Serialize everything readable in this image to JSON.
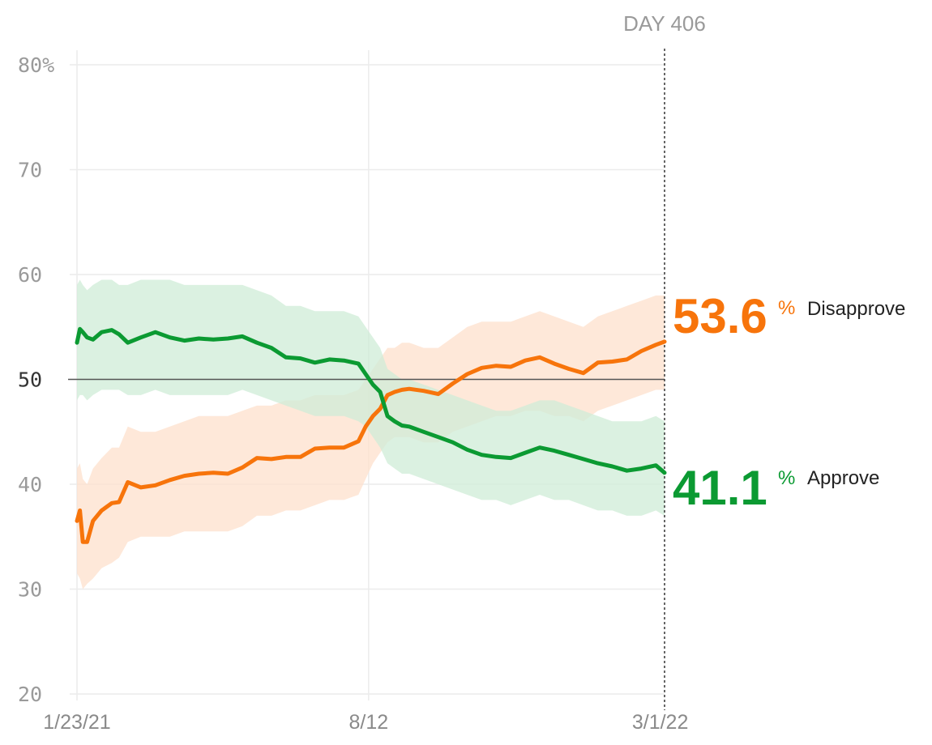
{
  "marker": {
    "label": "DAY 406"
  },
  "colors": {
    "approve": "#0b9a32",
    "disapprove": "#f7740b",
    "approve_band": "#cfecd7",
    "disapprove_band": "#fde0cc",
    "grid": "#ececec",
    "midline": "#555555"
  },
  "chart_data": {
    "type": "line",
    "ylim": [
      20,
      80
    ],
    "y_ticks": [
      "80%",
      "70",
      "60",
      "50",
      "40",
      "30",
      "20"
    ],
    "y_tick_values": [
      80,
      70,
      60,
      50,
      40,
      30,
      20
    ],
    "x_ticks": [
      "1/23/21",
      "8/12",
      "3/1/22"
    ],
    "x_tick_days": [
      1,
      202,
      403
    ],
    "x_domain_days": [
      1,
      406
    ],
    "reference_line": 50,
    "grid": true,
    "series": [
      {
        "name": "Disapprove",
        "key": "disapprove",
        "current": "53.6",
        "x_days": [
          1,
          3,
          5,
          8,
          12,
          18,
          25,
          30,
          36,
          45,
          55,
          65,
          75,
          85,
          95,
          105,
          115,
          125,
          135,
          145,
          155,
          165,
          175,
          185,
          195,
          200,
          205,
          210,
          215,
          220,
          225,
          230,
          240,
          250,
          260,
          270,
          280,
          290,
          300,
          310,
          320,
          330,
          340,
          350,
          360,
          370,
          380,
          390,
          400,
          406
        ],
        "values": [
          36.5,
          37.5,
          34.5,
          34.5,
          36.5,
          37.5,
          38.2,
          38.3,
          40.2,
          39.7,
          39.9,
          40.4,
          40.8,
          41.0,
          41.1,
          41.0,
          41.6,
          42.5,
          42.4,
          42.6,
          42.6,
          43.4,
          43.5,
          43.5,
          44.1,
          45.5,
          46.5,
          47.2,
          48.5,
          48.8,
          49.0,
          49.1,
          48.9,
          48.6,
          49.6,
          50.5,
          51.1,
          51.3,
          51.2,
          51.8,
          52.1,
          51.5,
          51.0,
          50.6,
          51.6,
          51.7,
          51.9,
          52.7,
          53.3,
          53.6
        ],
        "band_lower": [
          31.5,
          31.0,
          30.0,
          30.5,
          31.0,
          32.0,
          32.5,
          33.0,
          34.5,
          35.0,
          35.0,
          35.0,
          35.5,
          35.5,
          35.5,
          35.5,
          36.0,
          37.0,
          37.0,
          37.5,
          37.5,
          38.0,
          38.5,
          38.5,
          39.0,
          40.5,
          42.0,
          43.0,
          44.0,
          44.5,
          44.5,
          44.5,
          44.0,
          44.0,
          45.0,
          45.5,
          46.0,
          46.5,
          46.5,
          47.0,
          47.0,
          46.5,
          46.5,
          46.0,
          47.0,
          47.5,
          48.0,
          48.5,
          49.0,
          49.0
        ],
        "band_upper": [
          41.5,
          42.0,
          40.5,
          40.0,
          41.5,
          42.5,
          43.5,
          43.5,
          45.5,
          45.0,
          45.0,
          45.5,
          46.0,
          46.5,
          46.5,
          46.5,
          47.0,
          47.5,
          47.5,
          48.0,
          48.0,
          48.5,
          48.5,
          48.5,
          49.0,
          50.0,
          51.0,
          52.0,
          53.0,
          53.0,
          53.5,
          53.5,
          53.0,
          53.0,
          54.0,
          55.0,
          55.5,
          55.5,
          55.5,
          56.0,
          56.5,
          56.0,
          55.5,
          55.0,
          56.0,
          56.5,
          57.0,
          57.5,
          58.0,
          58.0
        ]
      },
      {
        "name": "Approve",
        "key": "approve",
        "current": "41.1",
        "x_days": [
          1,
          3,
          5,
          8,
          12,
          18,
          25,
          30,
          36,
          45,
          55,
          65,
          75,
          85,
          95,
          105,
          115,
          125,
          135,
          145,
          155,
          165,
          175,
          185,
          195,
          200,
          205,
          210,
          215,
          220,
          225,
          230,
          240,
          250,
          260,
          270,
          280,
          290,
          300,
          310,
          320,
          330,
          340,
          350,
          360,
          370,
          380,
          390,
          400,
          406
        ],
        "values": [
          53.5,
          54.8,
          54.5,
          54.0,
          53.8,
          54.5,
          54.7,
          54.3,
          53.5,
          54.0,
          54.5,
          54.0,
          53.7,
          53.9,
          53.8,
          53.9,
          54.1,
          53.5,
          53.0,
          52.1,
          52.0,
          51.6,
          51.9,
          51.8,
          51.5,
          50.5,
          49.5,
          48.8,
          46.5,
          46.0,
          45.6,
          45.5,
          45.0,
          44.5,
          44.0,
          43.3,
          42.8,
          42.6,
          42.5,
          43.0,
          43.5,
          43.2,
          42.8,
          42.4,
          42.0,
          41.7,
          41.3,
          41.5,
          41.8,
          41.1
        ],
        "band_lower": [
          48.0,
          48.5,
          48.5,
          48.0,
          48.5,
          49.0,
          49.0,
          49.0,
          48.5,
          48.5,
          49.0,
          48.5,
          48.5,
          48.5,
          48.5,
          48.5,
          49.0,
          48.5,
          48.0,
          47.5,
          47.0,
          46.5,
          46.5,
          46.5,
          46.0,
          45.5,
          44.5,
          43.5,
          42.0,
          41.5,
          41.0,
          41.0,
          40.5,
          40.0,
          39.5,
          39.0,
          38.5,
          38.5,
          38.0,
          38.5,
          39.0,
          38.5,
          38.5,
          38.0,
          37.5,
          37.5,
          37.0,
          37.0,
          37.5,
          37.0
        ],
        "band_upper": [
          59.0,
          59.5,
          59.0,
          58.5,
          59.0,
          59.5,
          59.5,
          59.0,
          59.0,
          59.5,
          59.5,
          59.5,
          59.0,
          59.0,
          59.0,
          59.0,
          59.0,
          58.5,
          58.0,
          57.0,
          57.0,
          56.5,
          56.5,
          56.5,
          56.0,
          55.0,
          54.0,
          53.0,
          51.0,
          50.5,
          50.0,
          50.0,
          49.5,
          49.0,
          48.5,
          48.0,
          47.5,
          47.0,
          47.0,
          47.5,
          48.0,
          48.0,
          47.5,
          47.0,
          46.5,
          46.0,
          46.0,
          46.0,
          46.5,
          46.0
        ]
      }
    ]
  }
}
